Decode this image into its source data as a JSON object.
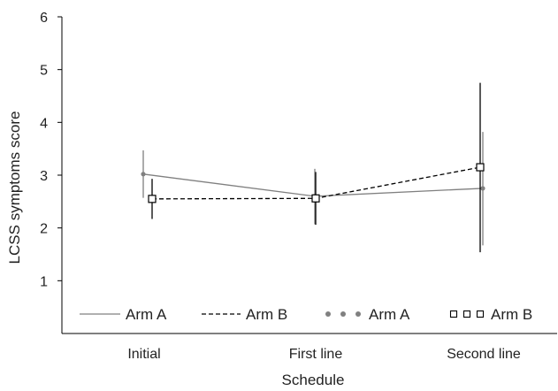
{
  "chart_data": {
    "type": "line",
    "title": "",
    "xlabel": "Schedule",
    "ylabel": "LCSS symptoms score",
    "categories": [
      "Initial",
      "First line",
      "Second line"
    ],
    "ylim": [
      0,
      6
    ],
    "yticks": [
      1,
      2,
      3,
      4,
      5,
      6
    ],
    "grid": false,
    "legend_position": "bottom-inside",
    "series": [
      {
        "name": "Arm A",
        "style": "solid",
        "marker": "dot",
        "color": "#808080",
        "values": [
          3.02,
          2.6,
          2.75
        ],
        "error_low": [
          2.57,
          2.07,
          1.67
        ],
        "error_high": [
          3.47,
          3.12,
          3.82
        ]
      },
      {
        "name": "Arm B",
        "style": "dashed",
        "marker": "open-square",
        "color": "#000000",
        "values": [
          2.55,
          2.56,
          3.15
        ],
        "error_low": [
          2.17,
          2.06,
          1.54
        ],
        "error_high": [
          2.93,
          3.06,
          4.75
        ]
      }
    ],
    "legend": [
      {
        "label": "Arm A",
        "symbol": "solid-line",
        "color": "#808080"
      },
      {
        "label": "Arm B",
        "symbol": "dashed-line",
        "color": "#000000"
      },
      {
        "label": "Arm A",
        "symbol": "dot-markers",
        "color": "#808080"
      },
      {
        "label": "Arm B",
        "symbol": "square-markers",
        "color": "#000000"
      }
    ]
  }
}
